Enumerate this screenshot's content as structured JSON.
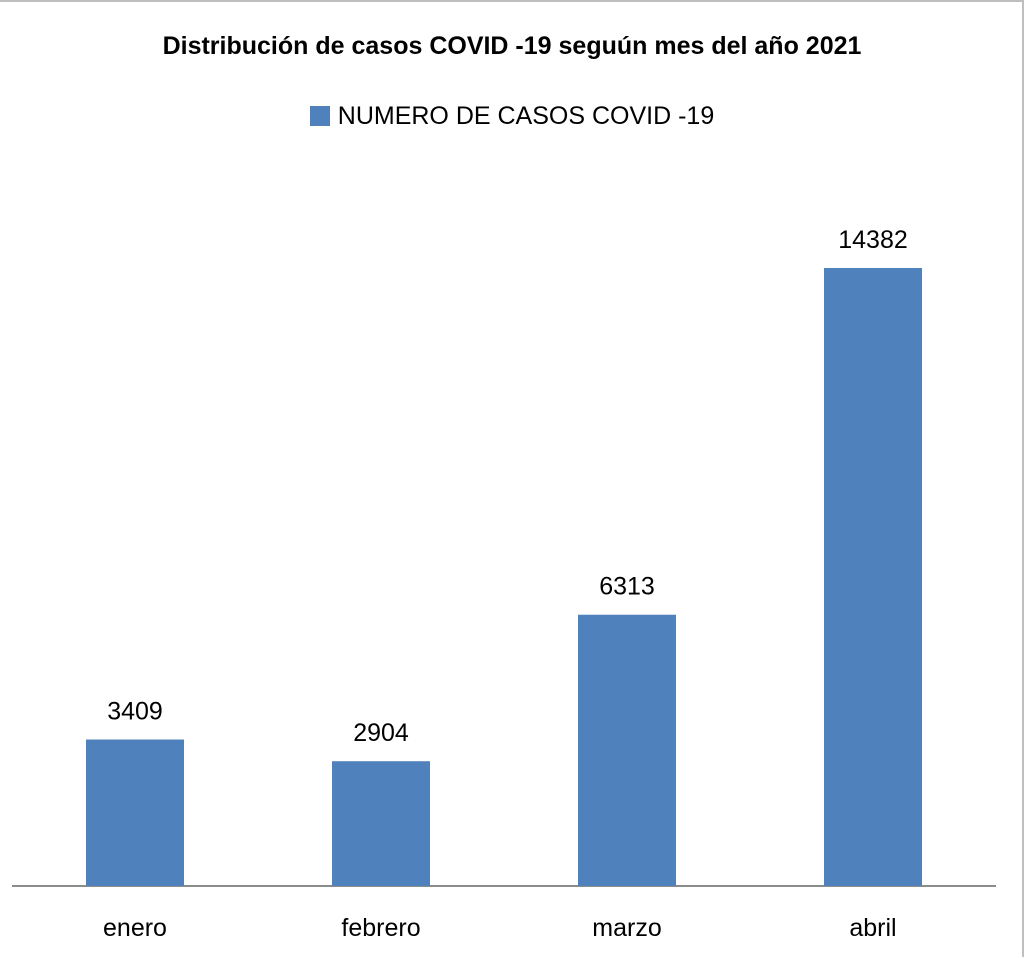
{
  "chart_data": {
    "type": "bar",
    "title": "Distribución de casos COVID -19 seguún mes del año 2021",
    "categories": [
      "enero",
      "febrero",
      "marzo",
      "abril"
    ],
    "series": [
      {
        "name": "NUMERO DE CASOS COVID -19",
        "values": [
          3409,
          2904,
          6313,
          14382
        ],
        "color": "#4f81bd"
      }
    ],
    "data_labels": [
      "3409",
      "2904",
      "6313",
      "14382"
    ],
    "xlabel": "",
    "ylabel": "",
    "ylim": [
      0,
      16500
    ],
    "grid": false,
    "legend_position": "top",
    "y_axis_visible": false
  }
}
